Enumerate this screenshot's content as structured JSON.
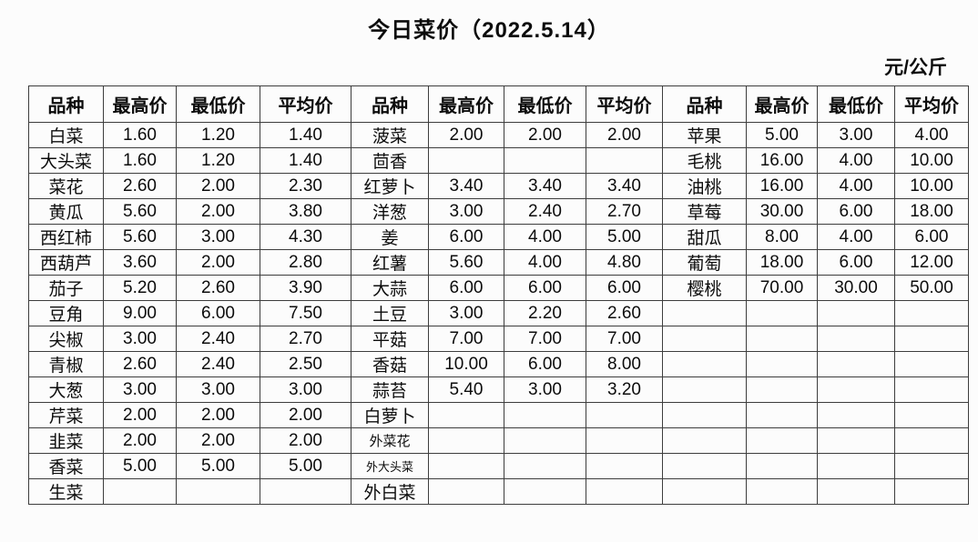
{
  "title": "今日菜价（2022.5.14）",
  "unit_label": "元/公斤",
  "table": {
    "headers": [
      "品种",
      "最高价",
      "最低价",
      "平均价"
    ],
    "sections": [
      {
        "rows": [
          [
            "白菜",
            "1.60",
            "1.20",
            "1.40"
          ],
          [
            "大头菜",
            "1.60",
            "1.20",
            "1.40"
          ],
          [
            "菜花",
            "2.60",
            "2.00",
            "2.30"
          ],
          [
            "黄瓜",
            "5.60",
            "2.00",
            "3.80"
          ],
          [
            "西红柿",
            "5.60",
            "3.00",
            "4.30"
          ],
          [
            "西葫芦",
            "3.60",
            "2.00",
            "2.80"
          ],
          [
            "茄子",
            "5.20",
            "2.60",
            "3.90"
          ],
          [
            "豆角",
            "9.00",
            "6.00",
            "7.50"
          ],
          [
            "尖椒",
            "3.00",
            "2.40",
            "2.70"
          ],
          [
            "青椒",
            "2.60",
            "2.40",
            "2.50"
          ],
          [
            "大葱",
            "3.00",
            "3.00",
            "3.00"
          ],
          [
            "芹菜",
            "2.00",
            "2.00",
            "2.00"
          ],
          [
            "韭菜",
            "2.00",
            "2.00",
            "2.00"
          ],
          [
            "香菜",
            "5.00",
            "5.00",
            "5.00"
          ],
          [
            "生菜",
            "",
            "",
            ""
          ]
        ]
      },
      {
        "rows": [
          [
            "菠菜",
            "2.00",
            "2.00",
            "2.00"
          ],
          [
            "茴香",
            "",
            "",
            ""
          ],
          [
            "红萝卜",
            "3.40",
            "3.40",
            "3.40"
          ],
          [
            "洋葱",
            "3.00",
            "2.40",
            "2.70"
          ],
          [
            "姜",
            "6.00",
            "4.00",
            "5.00"
          ],
          [
            "红薯",
            "5.60",
            "4.00",
            "4.80"
          ],
          [
            "大蒜",
            "6.00",
            "6.00",
            "6.00"
          ],
          [
            "土豆",
            "3.00",
            "2.20",
            "2.60"
          ],
          [
            "平菇",
            "7.00",
            "7.00",
            "7.00"
          ],
          [
            "香菇",
            "10.00",
            "6.00",
            "8.00"
          ],
          [
            "蒜苔",
            "5.40",
            "3.00",
            "3.20"
          ],
          [
            "白萝卜",
            "",
            "",
            ""
          ],
          [
            "外菜花",
            "",
            "",
            ""
          ],
          [
            "外大头菜",
            "",
            "",
            ""
          ],
          [
            "外白菜",
            "",
            "",
            ""
          ]
        ]
      },
      {
        "rows": [
          [
            "苹果",
            "5.00",
            "3.00",
            "4.00"
          ],
          [
            "毛桃",
            "16.00",
            "4.00",
            "10.00"
          ],
          [
            "油桃",
            "16.00",
            "4.00",
            "10.00"
          ],
          [
            "草莓",
            "30.00",
            "6.00",
            "18.00"
          ],
          [
            "甜瓜",
            "8.00",
            "4.00",
            "6.00"
          ],
          [
            "葡萄",
            "18.00",
            "6.00",
            "12.00"
          ],
          [
            "樱桃",
            "70.00",
            "30.00",
            "50.00"
          ],
          [
            "",
            "",
            "",
            ""
          ],
          [
            "",
            "",
            "",
            ""
          ],
          [
            "",
            "",
            "",
            ""
          ],
          [
            "",
            "",
            "",
            ""
          ],
          [
            "",
            "",
            "",
            ""
          ],
          [
            "",
            "",
            "",
            ""
          ],
          [
            "",
            "",
            "",
            ""
          ],
          [
            "",
            "",
            "",
            ""
          ]
        ]
      }
    ]
  }
}
